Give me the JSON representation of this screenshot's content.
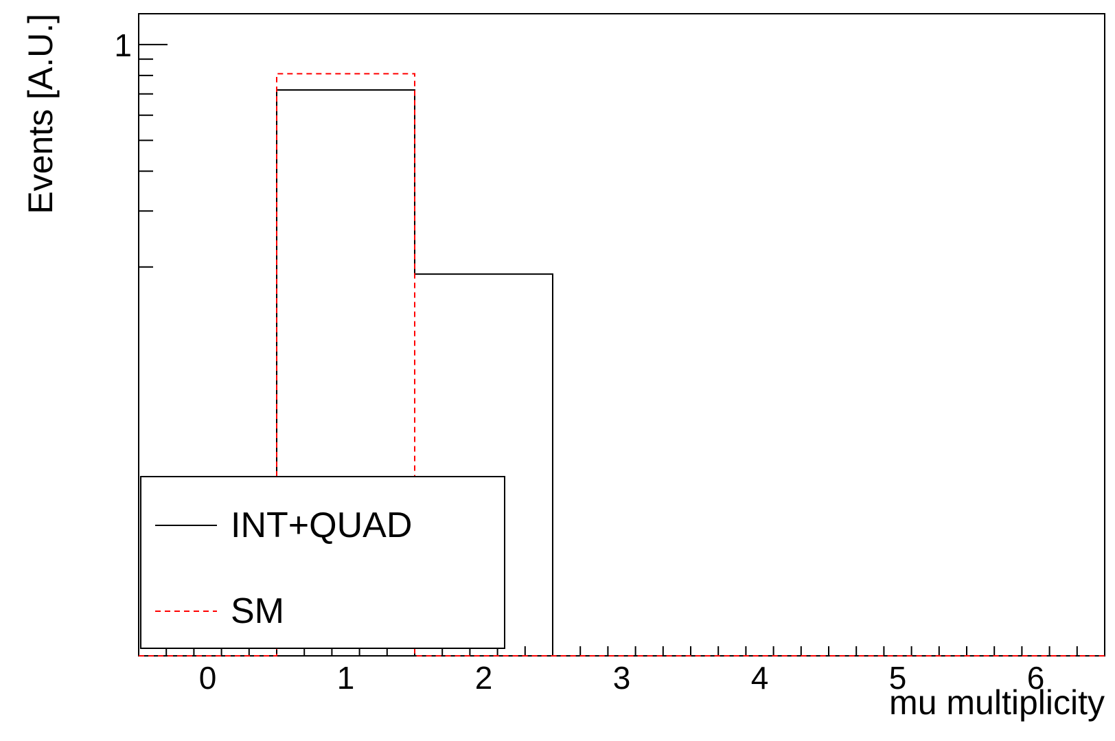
{
  "chart_data": {
    "type": "histogram",
    "xlabel": "mu multiplicity",
    "ylabel": "Events [A.U.]",
    "xlim": [
      -0.5,
      6.5
    ],
    "ylim": [
      0.012,
      1.25
    ],
    "yscale": "log",
    "y_tick_labels": [
      {
        "value": 1,
        "label": "1"
      }
    ],
    "x_tick_labels": [
      "0",
      "1",
      "2",
      "3",
      "4",
      "5",
      "6"
    ],
    "bin_edges": [
      -0.5,
      0.5,
      1.5,
      2.5,
      3.5,
      4.5,
      5.5,
      6.5
    ],
    "series": [
      {
        "name": "INT+QUAD",
        "color": "#000000",
        "style": "solid",
        "values": [
          0.0,
          0.72,
          0.19,
          0.0,
          0.0,
          0.0,
          0.0
        ]
      },
      {
        "name": "SM",
        "color": "#ff0000",
        "style": "dashed",
        "values": [
          0.0,
          0.81,
          0.012,
          0.0,
          0.0,
          0.0,
          0.0
        ]
      }
    ],
    "legend": {
      "placement": "bottom-left",
      "entries": [
        "INT+QUAD",
        "SM"
      ]
    },
    "grid": false
  }
}
